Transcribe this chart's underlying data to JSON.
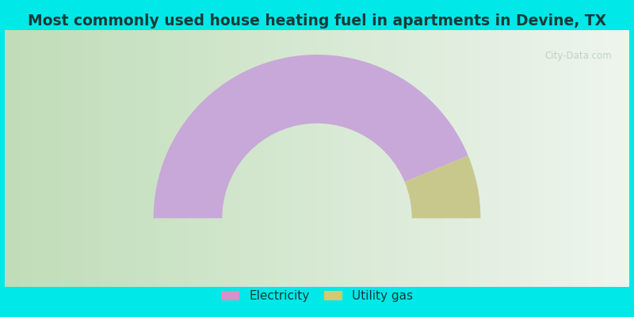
{
  "title": "Most commonly used house heating fuel in apartments in Devine, TX",
  "title_fontsize": 13.5,
  "slices": [
    {
      "label": "Electricity",
      "value": 87.5,
      "color": "#C8A8D8"
    },
    {
      "label": "Utility gas",
      "value": 12.5,
      "color": "#C8C88C"
    }
  ],
  "legend_marker_colors": [
    "#D890C8",
    "#D4C870"
  ],
  "legend_labels": [
    "Electricity",
    "Utility gas"
  ],
  "cyan_color": "#00E8E8",
  "donut_outer_R": 1.0,
  "donut_inner_R": 0.58,
  "legend_fontsize": 11,
  "watermark_text": "City-Data.com",
  "bg_left": "#C0DDB8",
  "bg_right": "#EEF5EE"
}
